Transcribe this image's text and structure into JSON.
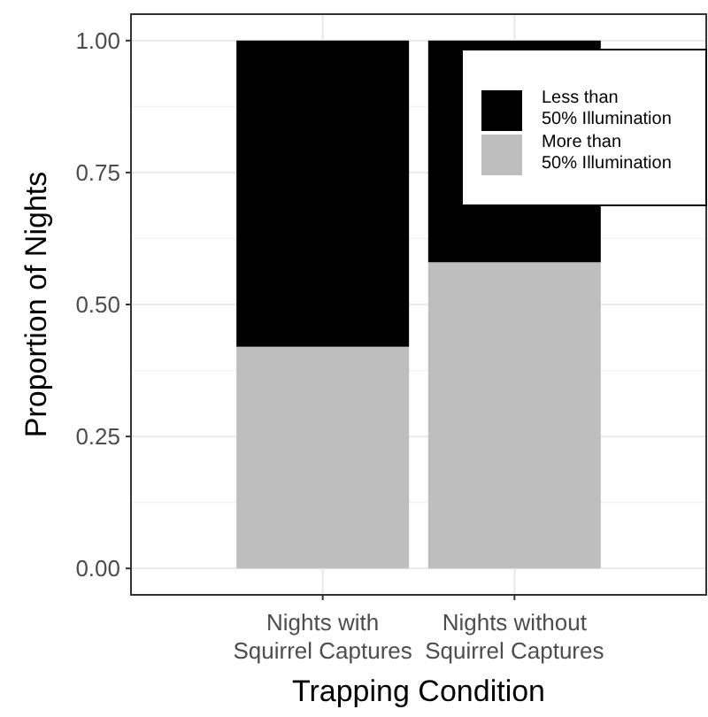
{
  "chart_data": {
    "type": "bar",
    "stacked": true,
    "xlabel": "Trapping Condition",
    "ylabel": "Proportion of Nights",
    "categories": [
      "Nights with\nSquirrel Captures",
      "Nights without\nSquirrel Captures"
    ],
    "series": [
      {
        "name": "More than\n50% Illumination",
        "color": "#bebebe",
        "values": [
          0.42,
          0.58
        ]
      },
      {
        "name": "Less than\n50% Illumination",
        "color": "#000000",
        "values": [
          0.58,
          0.42
        ]
      }
    ],
    "ylim": [
      -0.05,
      1.05
    ],
    "yticks": [
      {
        "value": 0,
        "label": "0.00"
      },
      {
        "value": 0.25,
        "label": "0.25"
      },
      {
        "value": 0.5,
        "label": "0.50"
      },
      {
        "value": 0.75,
        "label": "0.75"
      },
      {
        "value": 1,
        "label": "1.00"
      }
    ],
    "grid": true,
    "legend": "top right"
  }
}
